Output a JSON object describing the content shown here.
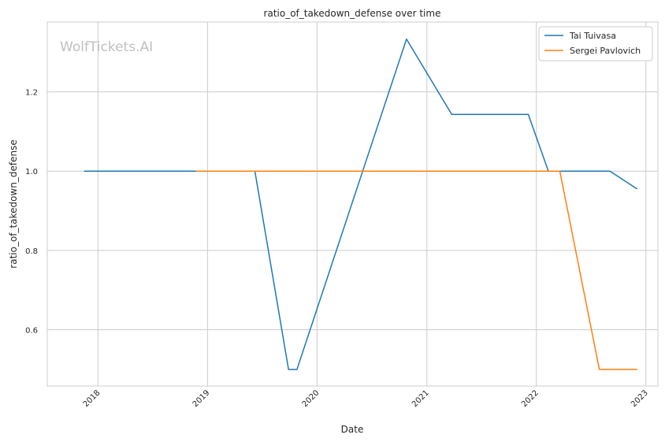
{
  "chart_data": {
    "type": "line",
    "title": "ratio_of_takedown_defense over time",
    "xlabel": "Date",
    "ylabel": "ratio_of_takedown_defense",
    "watermark": "WolfTickets.AI",
    "xlim": [
      "2017-07-16",
      "2023-02-10"
    ],
    "ylim": [
      0.458,
      1.376
    ],
    "x_ticks": [
      "2018",
      "2019",
      "2020",
      "2021",
      "2022",
      "2023"
    ],
    "y_ticks": [
      "0.6",
      "0.8",
      "1.0",
      "1.2"
    ],
    "grid": true,
    "legend_position": "top-right",
    "series": [
      {
        "name": "Tai Tuivasa",
        "color": "#1f77b4",
        "x": [
          "2017-11-15",
          "2018-11-15",
          "2019-06-08",
          "2019-09-28",
          "2019-10-26",
          "2020-06-01",
          "2020-10-25",
          "2021-03-25",
          "2021-12-05",
          "2022-02-10",
          "2022-09-03",
          "2022-12-03"
        ],
        "y": [
          1.0,
          1.0,
          1.0,
          0.5,
          0.5,
          1.0,
          1.333,
          1.143,
          1.143,
          1.0,
          1.0,
          0.955
        ]
      },
      {
        "name": "Sergei Pavlovich",
        "color": "#ff7f0e",
        "x": [
          "2018-11-24",
          "2022-03-20",
          "2022-07-30",
          "2022-12-03"
        ],
        "y": [
          1.0,
          1.0,
          0.5,
          0.5
        ]
      }
    ]
  }
}
